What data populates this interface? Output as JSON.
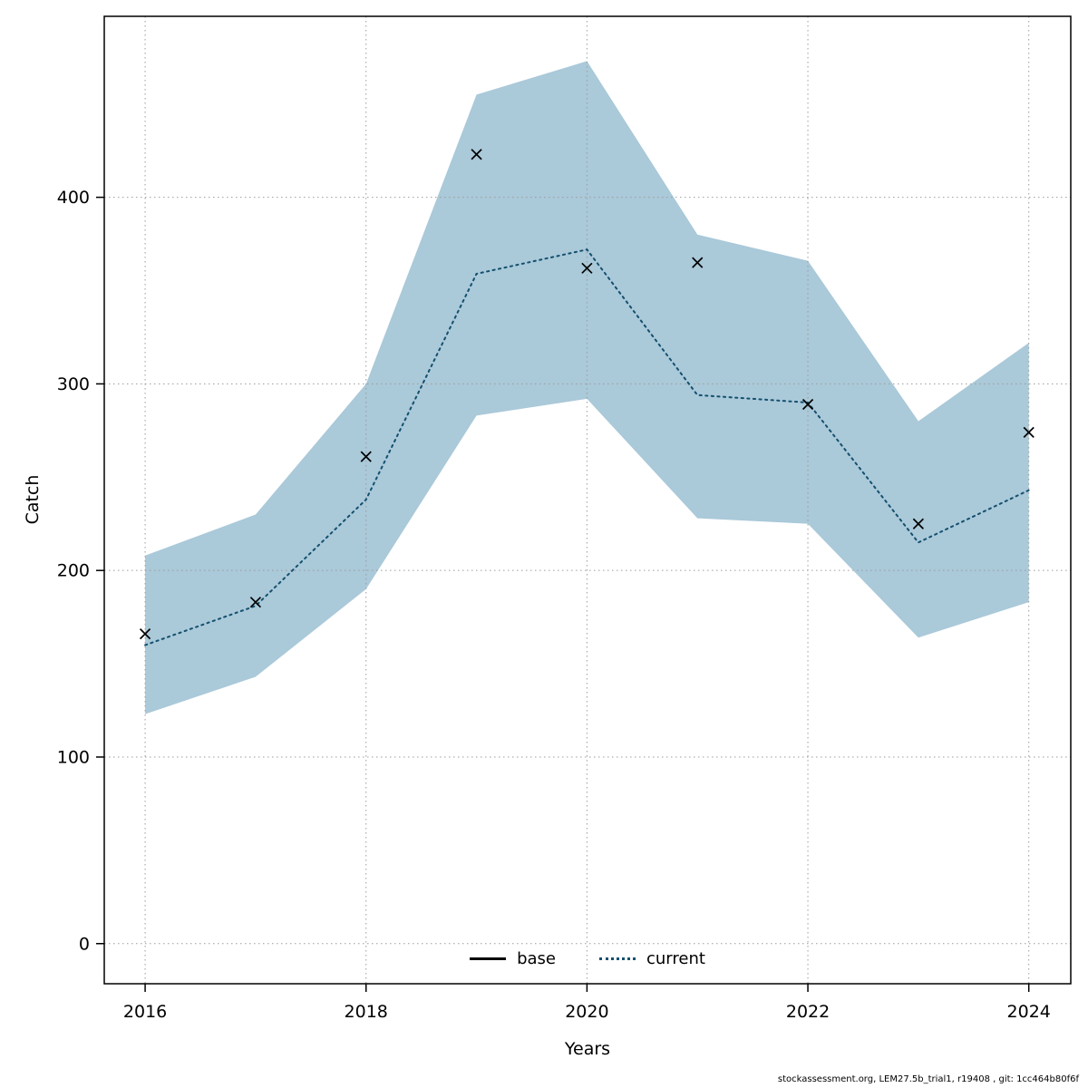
{
  "chart_data": {
    "type": "line",
    "title": "",
    "xlabel": "Years",
    "ylabel": "Catch",
    "x": [
      2016,
      2017,
      2018,
      2019,
      2020,
      2021,
      2022,
      2023,
      2024
    ],
    "series": [
      {
        "name": "current",
        "type": "line",
        "line_style": "dotted",
        "color": "#14506e",
        "values": [
          160,
          181,
          238,
          359,
          372,
          294,
          290,
          215,
          243
        ]
      },
      {
        "name": "observations",
        "type": "scatter",
        "marker": "x",
        "color": "#000000",
        "values": [
          166,
          183,
          261,
          423,
          362,
          365,
          289,
          225,
          274
        ]
      }
    ],
    "band": {
      "label": "confidence-band",
      "color": "#aac9d9",
      "lower": [
        123,
        143,
        190,
        283,
        292,
        228,
        225,
        164,
        183
      ],
      "upper": [
        208,
        230,
        300,
        455,
        473,
        380,
        366,
        280,
        322
      ]
    },
    "x_ticks": [
      2016,
      2018,
      2020,
      2022,
      2024
    ],
    "y_ticks": [
      0,
      100,
      200,
      300,
      400
    ],
    "xlim": [
      2015.63,
      2024.38
    ],
    "ylim": [
      -21.5,
      497
    ],
    "grid": true,
    "grid_color": "#9c9c9c",
    "legend_position": "bottom",
    "legend": [
      {
        "label": "base",
        "line_style": "solid",
        "color": "#000000"
      },
      {
        "label": "current",
        "line_style": "dotted",
        "color": "#14506e"
      }
    ]
  },
  "footer": {
    "text": "stockassessment.org, LEM27.5b_trial1, r19408 , git: 1cc464b80f6f"
  }
}
